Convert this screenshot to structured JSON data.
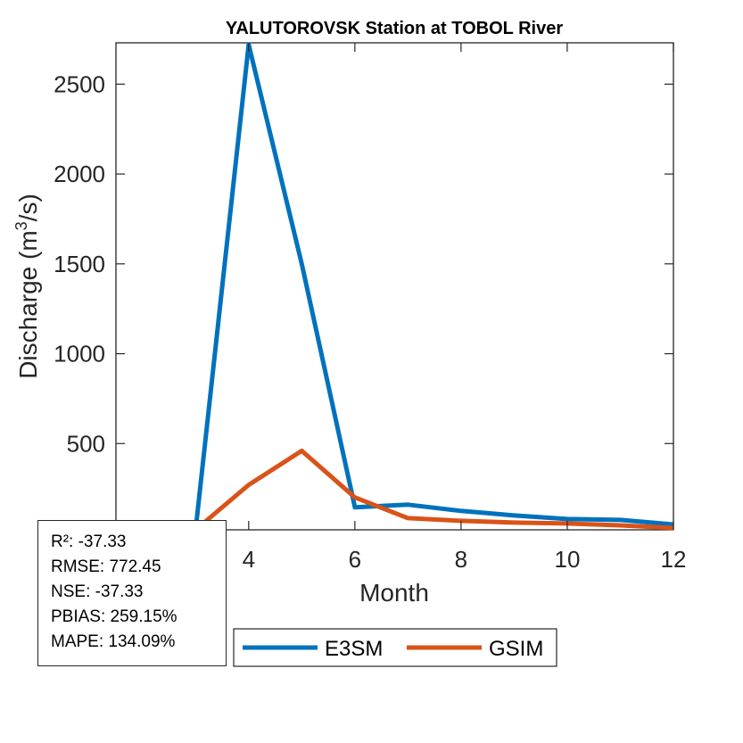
{
  "chart_data": {
    "type": "line",
    "title": "YALUTOROVSK  Station at  TOBOL  River",
    "xlabel": "Month",
    "ylabel_main": "Discharge (m",
    "ylabel_sup": "3",
    "ylabel_tail": "/s)",
    "xlim": [
      1.5,
      12
    ],
    "ylim": [
      20,
      2730
    ],
    "xticks": [
      4,
      6,
      8,
      10,
      12
    ],
    "yticks": [
      500,
      1000,
      1500,
      2000,
      2500
    ],
    "grid": false,
    "legend_position": "bottom-outside",
    "x": [
      3,
      4,
      5,
      6,
      7,
      8,
      9,
      10,
      11,
      12
    ],
    "series": [
      {
        "name": "E3SM",
        "color": "#0072BD",
        "values": [
          20,
          2720,
          1500,
          145,
          160,
          125,
          100,
          80,
          75,
          50
        ]
      },
      {
        "name": "GSIM",
        "color": "#D95319",
        "values": [
          20,
          270,
          460,
          200,
          85,
          70,
          60,
          55,
          45,
          30
        ]
      }
    ]
  },
  "stats": {
    "r2": "R²: -37.33",
    "rmse": "RMSE: 772.45",
    "nse": "NSE: -37.33",
    "pbias": "PBIAS: 259.15%",
    "mape": "MAPE: 134.09%"
  }
}
